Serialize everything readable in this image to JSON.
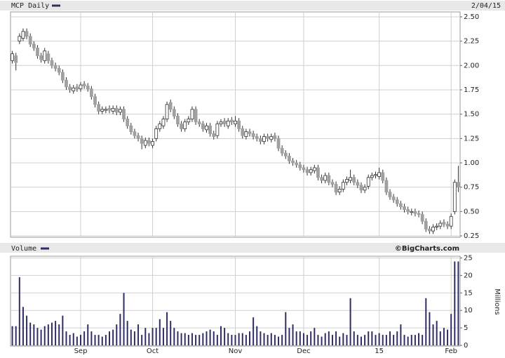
{
  "chart_data": [
    {
      "type": "candlestick",
      "title": "MCP Daily",
      "date": "2/04/15",
      "up_color": "#ffffff",
      "down_color": "#a0a0a0",
      "wick_color": "#333333",
      "legend_color": "#2e2e66",
      "open": [
        2.05,
        2.1,
        2.25,
        2.28,
        2.35,
        2.3,
        2.22,
        2.18,
        2.1,
        2.05,
        2.12,
        2.05,
        2.0,
        1.97,
        1.93,
        1.85,
        1.78,
        1.74,
        1.78,
        1.76,
        1.81,
        1.79,
        1.76,
        1.68,
        1.6,
        1.53,
        1.54,
        1.56,
        1.53,
        1.56,
        1.52,
        1.55,
        1.45,
        1.38,
        1.32,
        1.28,
        1.25,
        1.18,
        1.23,
        1.18,
        1.25,
        1.35,
        1.38,
        1.45,
        1.62,
        1.55,
        1.48,
        1.4,
        1.35,
        1.42,
        1.45,
        1.55,
        1.42,
        1.4,
        1.34,
        1.38,
        1.3,
        1.28,
        1.4,
        1.43,
        1.38,
        1.44,
        1.4,
        1.43,
        1.35,
        1.27,
        1.32,
        1.3,
        1.27,
        1.25,
        1.22,
        1.27,
        1.24,
        1.28,
        1.25,
        1.15,
        1.1,
        1.07,
        1.02,
        1.0,
        0.98,
        0.95,
        0.93,
        0.9,
        0.92,
        0.95,
        0.85,
        0.82,
        0.87,
        0.8,
        0.78,
        0.7,
        0.73,
        0.8,
        0.82,
        0.85,
        0.8,
        0.77,
        0.72,
        0.76,
        0.85,
        0.87,
        0.86,
        0.9,
        0.82,
        0.7,
        0.65,
        0.62,
        0.58,
        0.55,
        0.52,
        0.49,
        0.5,
        0.48,
        0.47,
        0.4,
        0.32,
        0.3,
        0.34,
        0.35,
        0.39,
        0.37,
        0.35,
        0.5,
        0.8
      ],
      "high": [
        2.15,
        2.13,
        2.33,
        2.38,
        2.38,
        2.33,
        2.25,
        2.21,
        2.13,
        2.18,
        2.15,
        2.08,
        2.03,
        2.0,
        1.96,
        1.88,
        1.81,
        1.8,
        1.81,
        1.83,
        1.84,
        1.82,
        1.79,
        1.71,
        1.63,
        1.58,
        1.58,
        1.59,
        1.59,
        1.59,
        1.58,
        1.58,
        1.48,
        1.41,
        1.35,
        1.31,
        1.28,
        1.26,
        1.26,
        1.25,
        1.38,
        1.43,
        1.48,
        1.63,
        1.65,
        1.58,
        1.51,
        1.43,
        1.45,
        1.48,
        1.58,
        1.58,
        1.45,
        1.43,
        1.41,
        1.41,
        1.33,
        1.43,
        1.45,
        1.46,
        1.46,
        1.47,
        1.48,
        1.46,
        1.38,
        1.35,
        1.35,
        1.33,
        1.3,
        1.28,
        1.3,
        1.3,
        1.3,
        1.31,
        1.28,
        1.18,
        1.13,
        1.1,
        1.05,
        1.03,
        1.01,
        0.98,
        0.96,
        0.96,
        0.98,
        0.98,
        0.88,
        0.9,
        0.9,
        0.83,
        0.81,
        0.76,
        0.83,
        0.86,
        0.93,
        0.88,
        0.83,
        0.8,
        0.78,
        0.88,
        0.9,
        0.91,
        0.95,
        0.93,
        0.85,
        0.73,
        0.68,
        0.65,
        0.61,
        0.58,
        0.55,
        0.53,
        0.53,
        0.51,
        0.5,
        0.43,
        0.35,
        0.37,
        0.38,
        0.41,
        0.42,
        0.4,
        0.48,
        0.83,
        0.97
      ],
      "low": [
        2.02,
        1.95,
        2.22,
        2.25,
        2.27,
        2.19,
        2.15,
        2.07,
        2.03,
        2.02,
        2.02,
        1.97,
        1.94,
        1.9,
        1.82,
        1.75,
        1.72,
        1.71,
        1.73,
        1.73,
        1.76,
        1.73,
        1.65,
        1.57,
        1.5,
        1.5,
        1.51,
        1.51,
        1.5,
        1.49,
        1.49,
        1.42,
        1.35,
        1.29,
        1.25,
        1.22,
        1.14,
        1.15,
        1.17,
        1.15,
        1.22,
        1.32,
        1.35,
        1.42,
        1.52,
        1.45,
        1.37,
        1.32,
        1.32,
        1.39,
        1.42,
        1.39,
        1.37,
        1.32,
        1.31,
        1.27,
        1.24,
        1.25,
        1.37,
        1.37,
        1.35,
        1.39,
        1.37,
        1.32,
        1.25,
        1.24,
        1.27,
        1.24,
        1.22,
        1.19,
        1.19,
        1.22,
        1.21,
        1.22,
        1.12,
        1.07,
        1.04,
        0.99,
        0.97,
        0.95,
        0.92,
        0.9,
        0.87,
        0.87,
        0.89,
        0.82,
        0.79,
        0.79,
        0.77,
        0.75,
        0.67,
        0.67,
        0.7,
        0.77,
        0.79,
        0.77,
        0.74,
        0.69,
        0.69,
        0.73,
        0.82,
        0.84,
        0.83,
        0.79,
        0.67,
        0.62,
        0.59,
        0.55,
        0.52,
        0.49,
        0.47,
        0.46,
        0.45,
        0.44,
        0.37,
        0.29,
        0.27,
        0.27,
        0.31,
        0.32,
        0.34,
        0.32,
        0.32,
        0.47,
        0.7
      ],
      "close": [
        2.12,
        2.03,
        2.3,
        2.35,
        2.3,
        2.22,
        2.18,
        2.1,
        2.06,
        2.15,
        2.05,
        2.0,
        1.97,
        1.93,
        1.85,
        1.78,
        1.75,
        1.77,
        1.76,
        1.8,
        1.79,
        1.76,
        1.68,
        1.6,
        1.53,
        1.55,
        1.55,
        1.54,
        1.56,
        1.52,
        1.55,
        1.45,
        1.38,
        1.32,
        1.28,
        1.25,
        1.2,
        1.23,
        1.2,
        1.22,
        1.35,
        1.4,
        1.45,
        1.6,
        1.55,
        1.48,
        1.4,
        1.35,
        1.42,
        1.45,
        1.55,
        1.42,
        1.4,
        1.35,
        1.38,
        1.3,
        1.27,
        1.4,
        1.42,
        1.4,
        1.43,
        1.42,
        1.43,
        1.35,
        1.28,
        1.32,
        1.3,
        1.27,
        1.25,
        1.22,
        1.27,
        1.25,
        1.27,
        1.25,
        1.15,
        1.1,
        1.07,
        1.02,
        1.0,
        0.98,
        0.95,
        0.93,
        0.9,
        0.93,
        0.95,
        0.85,
        0.82,
        0.87,
        0.8,
        0.78,
        0.7,
        0.73,
        0.8,
        0.83,
        0.85,
        0.8,
        0.77,
        0.72,
        0.75,
        0.85,
        0.87,
        0.88,
        0.9,
        0.82,
        0.7,
        0.65,
        0.62,
        0.58,
        0.55,
        0.52,
        0.5,
        0.5,
        0.48,
        0.47,
        0.4,
        0.32,
        0.3,
        0.34,
        0.35,
        0.38,
        0.37,
        0.35,
        0.45,
        0.8,
        0.75
      ],
      "ylim": [
        0.243,
        2.543
      ],
      "yticks": [
        {
          "value": 0.25,
          "label": "0.25"
        },
        {
          "value": 0.5,
          "label": "0.50"
        },
        {
          "value": 0.75,
          "label": "0.75"
        },
        {
          "value": 1,
          "label": "1.00"
        },
        {
          "value": 1.25,
          "label": "1.25"
        },
        {
          "value": 1.5,
          "label": "1.50"
        },
        {
          "value": 1.75,
          "label": "1.75"
        },
        {
          "value": 2,
          "label": "2.00"
        },
        {
          "value": 2.25,
          "label": "2.25"
        },
        {
          "value": 2.5,
          "label": "2.50"
        }
      ],
      "grid": true
    },
    {
      "type": "bar",
      "title": "Volume",
      "credit": "©BigCharts.com",
      "y_label": "Millions",
      "color": "#2e2e66",
      "categories": [
        null,
        null,
        null,
        null,
        null,
        null,
        null,
        null,
        null,
        null,
        null,
        null,
        null,
        null,
        null,
        null,
        null,
        null,
        null,
        "Sep",
        null,
        null,
        null,
        null,
        null,
        null,
        null,
        null,
        null,
        null,
        null,
        null,
        null,
        null,
        null,
        null,
        null,
        null,
        null,
        "Oct",
        null,
        null,
        null,
        null,
        null,
        null,
        null,
        null,
        null,
        null,
        null,
        null,
        null,
        null,
        null,
        null,
        null,
        null,
        null,
        null,
        null,
        null,
        "Nov",
        null,
        null,
        null,
        null,
        null,
        null,
        null,
        null,
        null,
        null,
        null,
        null,
        null,
        null,
        null,
        null,
        null,
        null,
        "Dec",
        null,
        null,
        null,
        null,
        null,
        null,
        null,
        null,
        null,
        null,
        null,
        null,
        null,
        null,
        null,
        null,
        null,
        null,
        null,
        null,
        "15",
        null,
        null,
        null,
        null,
        null,
        null,
        null,
        null,
        null,
        null,
        null,
        null,
        null,
        null,
        null,
        null,
        null,
        null,
        null,
        "Feb",
        null,
        null
      ],
      "values": [
        5.5,
        5.5,
        19.5,
        11,
        8.5,
        6.5,
        6,
        5,
        4.5,
        5.5,
        6,
        6.5,
        7,
        6,
        8.5,
        4,
        3,
        3.5,
        2.5,
        3,
        4,
        6,
        4,
        3,
        3,
        2.5,
        3,
        4,
        4.5,
        6,
        9,
        15,
        7,
        4.5,
        4,
        6,
        3,
        5,
        3.5,
        5,
        5,
        7.5,
        5,
        9.5,
        7,
        5,
        4,
        3.5,
        3.5,
        3,
        3.5,
        3,
        3,
        3.5,
        4,
        4.5,
        4,
        3,
        5.5,
        5,
        3.5,
        3,
        3,
        3.5,
        3.5,
        3,
        4,
        8,
        5.5,
        4,
        3.5,
        3,
        3.5,
        3,
        2.5,
        3,
        9.5,
        5,
        6,
        4,
        4,
        3.5,
        3,
        4,
        5,
        3,
        2.5,
        3.5,
        4,
        3,
        4,
        2.5,
        3.5,
        3,
        13.5,
        4,
        3,
        2.5,
        3,
        4,
        4,
        3,
        3.5,
        3,
        3,
        4,
        3,
        4,
        6,
        3,
        2.5,
        3,
        3,
        3.5,
        3,
        13.5,
        9.5,
        6,
        7,
        4,
        5,
        4.5,
        9,
        24,
        24
      ],
      "ylim": [
        0,
        25.3
      ],
      "yticks": [
        0,
        5,
        10,
        15,
        20,
        25
      ],
      "grid": true
    }
  ]
}
